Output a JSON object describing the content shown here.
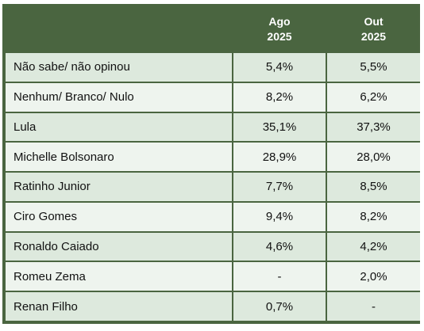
{
  "chart_data": {
    "type": "table",
    "columns": [
      {
        "line1": "Ago",
        "line2": "2025"
      },
      {
        "line1": "Out",
        "line2": "2025"
      }
    ],
    "rows": [
      {
        "label": "Não sabe/ não opinou",
        "values": [
          "5,4%",
          "5,5%"
        ]
      },
      {
        "label": "Nenhum/ Branco/ Nulo",
        "values": [
          "8,2%",
          "6,2%"
        ]
      },
      {
        "label": "Lula",
        "values": [
          "35,1%",
          "37,3%"
        ]
      },
      {
        "label": "Michelle Bolsonaro",
        "values": [
          "28,9%",
          "28,0%"
        ]
      },
      {
        "label": "Ratinho Junior",
        "values": [
          "7,7%",
          "8,5%"
        ]
      },
      {
        "label": "Ciro Gomes",
        "values": [
          "9,4%",
          "8,2%"
        ]
      },
      {
        "label": "Ronaldo Caiado",
        "values": [
          "4,6%",
          "4,2%"
        ]
      },
      {
        "label": "Romeu Zema",
        "values": [
          "-",
          "2,0%"
        ]
      },
      {
        "label": "Renan Filho",
        "values": [
          "0,7%",
          "-"
        ]
      }
    ],
    "colors": {
      "header": "#4a6540",
      "row_odd": "#dde9dd",
      "row_even": "#eef4ee"
    }
  }
}
